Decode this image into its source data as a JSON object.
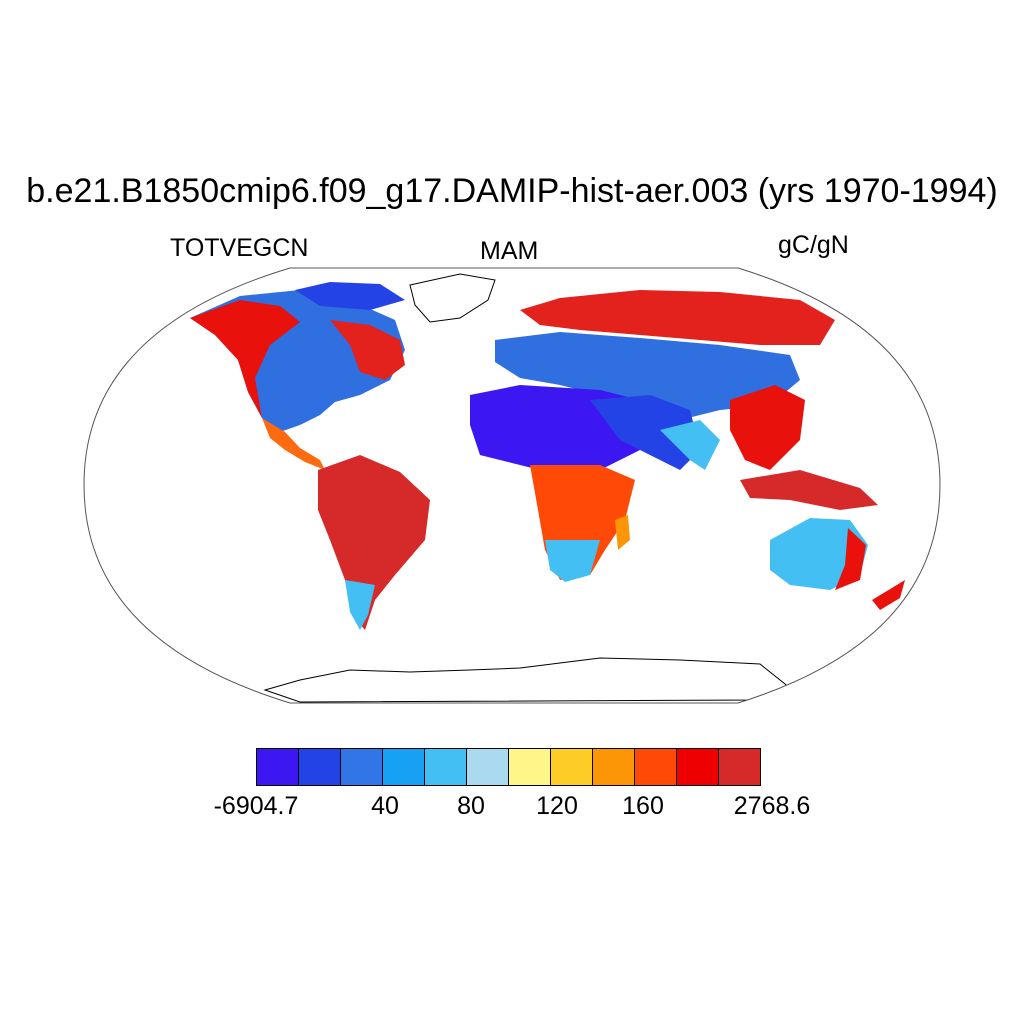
{
  "title": "b.e21.B1850cmip6.f09_g17.DAMIP-hist-aer.003 (yrs 1970-1994)",
  "left_label": "TOTVEGCN",
  "center_label": "MAM",
  "right_label": "gC/gN",
  "colorbar": {
    "colors": [
      "#3c17f2",
      "#2443e6",
      "#3275e6",
      "#16a1f5",
      "#43bff3",
      "#abdaf0",
      "#fff68a",
      "#fdcc26",
      "#fd9606",
      "#fe4a06",
      "#ee0000",
      "#d62a2a"
    ],
    "labels": [
      {
        "text": "-6904.7",
        "boundary": 0
      },
      {
        "text": "40",
        "boundary": 3
      },
      {
        "text": "80",
        "boundary": 5
      },
      {
        "text": "120",
        "boundary": 7
      },
      {
        "text": "160",
        "boundary": 9
      },
      {
        "text": "2768.6",
        "boundary": 12
      }
    ]
  },
  "map": {
    "projection": "Robinson",
    "land_fill": "#ffffff",
    "outline_color": "#000000"
  }
}
